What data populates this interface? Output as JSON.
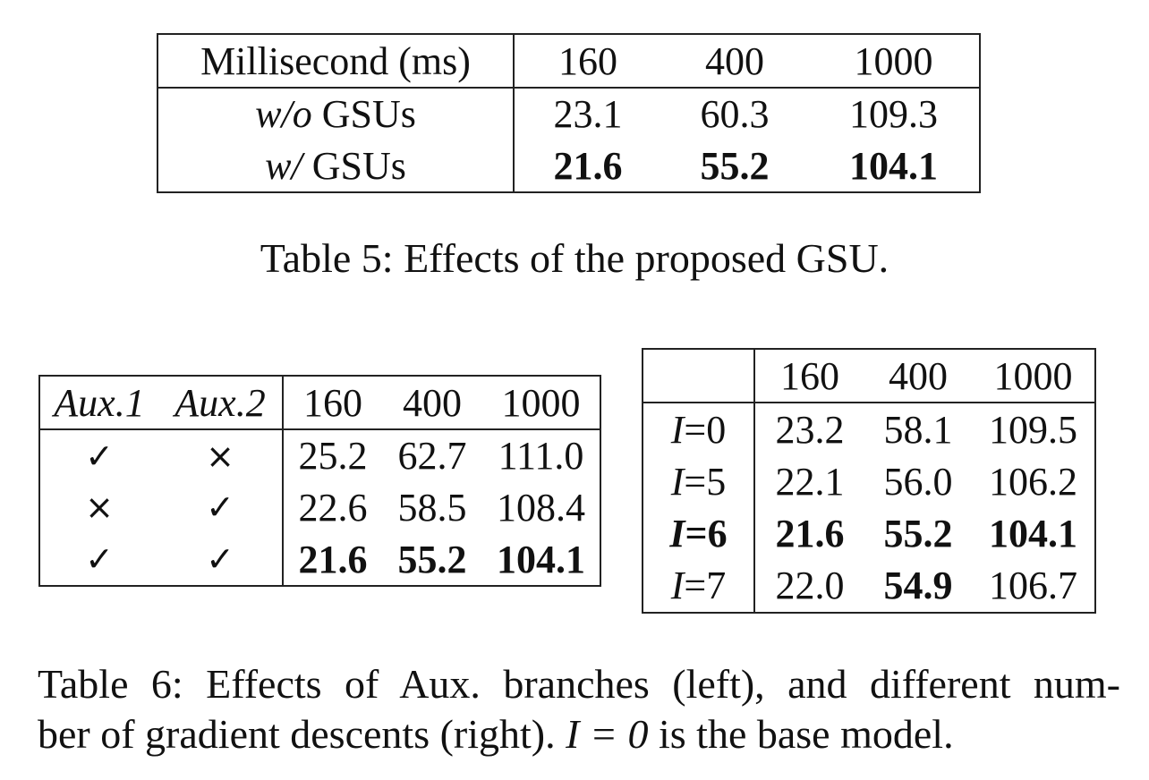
{
  "table5": {
    "header": [
      "Millisecond (ms)",
      "160",
      "400",
      "1000"
    ],
    "rows": [
      {
        "label_italic": "w/o",
        "label_rest": " GSUs",
        "values": [
          "23.1",
          "60.3",
          "109.3"
        ],
        "bold": false
      },
      {
        "label_italic": "w/",
        "label_rest": " GSUs",
        "values": [
          "21.6",
          "55.2",
          "104.1"
        ],
        "bold": true
      }
    ],
    "caption": "Table 5: Effects of the proposed GSU."
  },
  "table6_left": {
    "header": [
      "Aux.1",
      "Aux.2",
      "160",
      "400",
      "1000"
    ],
    "rows": [
      {
        "aux1": "✓",
        "aux2": "×",
        "values": [
          "25.2",
          "62.7",
          "111.0"
        ],
        "bold": false
      },
      {
        "aux1": "×",
        "aux2": "✓",
        "values": [
          "22.6",
          "58.5",
          "108.4"
        ],
        "bold": false
      },
      {
        "aux1": "✓",
        "aux2": "✓",
        "values": [
          "21.6",
          "55.2",
          "104.1"
        ],
        "bold": true
      }
    ]
  },
  "table6_right": {
    "header": [
      "",
      "160",
      "400",
      "1000"
    ],
    "rows": [
      {
        "var": "I",
        "eq": "=",
        "num": "0",
        "values": [
          "23.2",
          "58.1",
          "109.5"
        ],
        "bold_label": false,
        "bold": [
          false,
          false,
          false
        ]
      },
      {
        "var": "I",
        "eq": "=",
        "num": "5",
        "values": [
          "22.1",
          "56.0",
          "106.2"
        ],
        "bold_label": false,
        "bold": [
          false,
          false,
          false
        ]
      },
      {
        "var": "I",
        "eq": "=",
        "num": "6",
        "values": [
          "21.6",
          "55.2",
          "104.1"
        ],
        "bold_label": true,
        "bold": [
          true,
          true,
          true
        ]
      },
      {
        "var": "I",
        "eq": "=",
        "num": "7",
        "values": [
          "22.0",
          "54.9",
          "106.7"
        ],
        "bold_label": false,
        "bold": [
          false,
          true,
          false
        ]
      }
    ]
  },
  "caption6": {
    "line1": "Table 6: Effects of Aux. branches (left), and different num-",
    "line2_pre": "ber of gradient descents (right). ",
    "line2_math": "I = 0",
    "line2_post": " is the base model."
  }
}
